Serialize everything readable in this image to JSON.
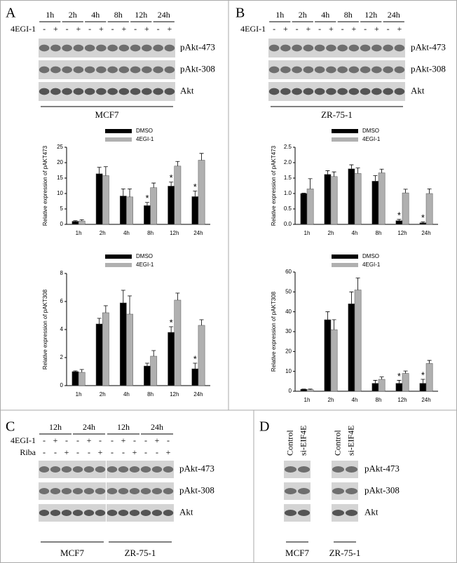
{
  "blots": [
    {
      "letter": "A",
      "times": [
        "1h",
        "2h",
        "4h",
        "8h",
        "12h",
        "24h"
      ],
      "rows": [
        {
          "label": "4EGI-1",
          "signs": [
            "-",
            "+",
            "-",
            "+",
            "-",
            "+",
            "-",
            "+",
            "-",
            "+",
            "-",
            "+"
          ]
        }
      ],
      "bands": [
        "pAkt-473",
        "pAkt-308",
        "Akt"
      ],
      "cell_lines": [
        "MCF7"
      ]
    },
    {
      "letter": "B",
      "times": [
        "1h",
        "2h",
        "4h",
        "8h",
        "12h",
        "24h"
      ],
      "rows": [
        {
          "label": "4EGI-1",
          "signs": [
            "-",
            "+",
            "-",
            "+",
            "-",
            "+",
            "-",
            "+",
            "-",
            "+",
            "-",
            "+"
          ]
        }
      ],
      "bands": [
        "pAkt-473",
        "pAkt-308",
        "Akt"
      ],
      "cell_lines": [
        "ZR-75-1"
      ]
    },
    {
      "letter": "C",
      "times": [
        "12h",
        "24h",
        "12h",
        "24h"
      ],
      "rows": [
        {
          "label": "4EGI-1",
          "signs": [
            "-",
            "+",
            "-",
            "-",
            "+",
            "-",
            "-",
            "+",
            "-",
            "-",
            "+",
            "-"
          ]
        },
        {
          "label": "Riba",
          "signs": [
            "-",
            "-",
            "+",
            "-",
            "-",
            "+",
            "-",
            "-",
            "+",
            "-",
            "-",
            "+"
          ]
        }
      ],
      "bands": [
        "pAkt-473",
        "pAkt-308",
        "Akt"
      ],
      "cell_lines": [
        "MCF7",
        "ZR-75-1"
      ]
    },
    {
      "letter": "D",
      "lanes": [
        "Control",
        "si-EIF4E",
        "Control",
        "si-EIF4E"
      ],
      "bands": [
        "pAkt-473",
        "pAkt-308",
        "Akt"
      ],
      "cell_lines": [
        "MCF7",
        "ZR-75-1"
      ]
    }
  ],
  "chart_data": [
    {
      "type": "bar",
      "y_label": "Relative expression of pAKT473",
      "categories": [
        "1h",
        "2h",
        "4h",
        "8h",
        "12h",
        "24h"
      ],
      "series": [
        {
          "name": "DMSO",
          "color": "#000000",
          "values": [
            1,
            16.4,
            9.2,
            6.1,
            12.4,
            9.0
          ],
          "errors": [
            0.2,
            2.1,
            2.3,
            1.0,
            1.3,
            1.8
          ]
        },
        {
          "name": "4EGI-1",
          "color": "#b0b0b0",
          "values": [
            1.1,
            15.8,
            8.9,
            11.9,
            18.9,
            20.8
          ],
          "errors": [
            0.4,
            2.9,
            2.6,
            1.5,
            1.5,
            2.2
          ]
        }
      ],
      "ylim": [
        0,
        25
      ],
      "yticks": [
        0,
        5,
        10,
        15,
        20,
        25
      ],
      "annotations": [
        {
          "text": "*",
          "category": "8h",
          "series": "DMSO"
        },
        {
          "text": "*",
          "category": "12h",
          "series": "DMSO"
        },
        {
          "text": "*",
          "category": "24h",
          "series": "DMSO"
        }
      ]
    },
    {
      "type": "bar",
      "y_label": "Relative expression of pAKT308",
      "categories": [
        "1h",
        "2h",
        "4h",
        "8h",
        "12h",
        "24h"
      ],
      "series": [
        {
          "name": "DMSO",
          "color": "#000000",
          "values": [
            1,
            4.4,
            5.9,
            1.4,
            3.8,
            1.2
          ],
          "errors": [
            0.05,
            0.4,
            0.9,
            0.2,
            0.4,
            0.4
          ]
        },
        {
          "name": "4EGI-1",
          "color": "#b0b0b0",
          "values": [
            0.95,
            5.2,
            5.1,
            2.1,
            6.1,
            4.3
          ],
          "errors": [
            0.2,
            0.5,
            1.3,
            0.4,
            0.5,
            0.4
          ]
        }
      ],
      "ylim": [
        0,
        8
      ],
      "yticks": [
        0,
        2,
        4,
        6,
        8
      ],
      "annotations": [
        {
          "text": "*",
          "category": "12h",
          "series": "DMSO"
        },
        {
          "text": "*",
          "category": "24h",
          "series": "DMSO"
        }
      ]
    },
    {
      "type": "bar",
      "y_label": "Relative expression of pAKT473",
      "categories": [
        "1h",
        "2h",
        "4h",
        "8h",
        "12h",
        "24h"
      ],
      "series": [
        {
          "name": "DMSO",
          "color": "#000000",
          "values": [
            1.0,
            1.62,
            1.8,
            1.4,
            0.12,
            0.05
          ],
          "errors": [
            0.01,
            0.12,
            0.13,
            0.18,
            0.04,
            0.03
          ]
        },
        {
          "name": "4EGI-1",
          "color": "#b0b0b0",
          "values": [
            1.15,
            1.55,
            1.65,
            1.67,
            1.02,
            1.0
          ],
          "errors": [
            0.33,
            0.15,
            0.18,
            0.12,
            0.12,
            0.15
          ]
        }
      ],
      "ylim": [
        0,
        2.5
      ],
      "yticks": [
        {
          "value": 0,
          "label": "0.0"
        },
        0.5,
        {
          "value": 1,
          "label": "1.0"
        },
        1.5,
        {
          "value": 2,
          "label": "2.0"
        },
        2.5
      ],
      "annotations": [
        {
          "text": "*",
          "category": "12h",
          "series": "DMSO"
        },
        {
          "text": "*",
          "category": "24h",
          "series": "DMSO"
        }
      ]
    },
    {
      "type": "bar",
      "y_label": "Relative expression of pAKT308",
      "categories": [
        "1h",
        "2h",
        "4h",
        "8h",
        "12h",
        "24h"
      ],
      "series": [
        {
          "name": "DMSO",
          "color": "#000000",
          "values": [
            1,
            36,
            44,
            4,
            4,
            4
          ],
          "errors": [
            0.1,
            4,
            6,
            1.5,
            1.5,
            2
          ]
        },
        {
          "name": "4EGI-1",
          "color": "#b0b0b0",
          "values": [
            0.8,
            31,
            51,
            6,
            9,
            14
          ],
          "errors": [
            0.3,
            5,
            6,
            1.2,
            1.2,
            1.5
          ]
        }
      ],
      "ylim": [
        0,
        60
      ],
      "yticks": [
        0,
        10,
        20,
        30,
        40,
        50,
        60
      ],
      "annotations": [
        {
          "text": "*",
          "category": "12h",
          "series": "DMSO"
        },
        {
          "text": "*",
          "category": "24h",
          "series": "DMSO"
        }
      ]
    }
  ]
}
